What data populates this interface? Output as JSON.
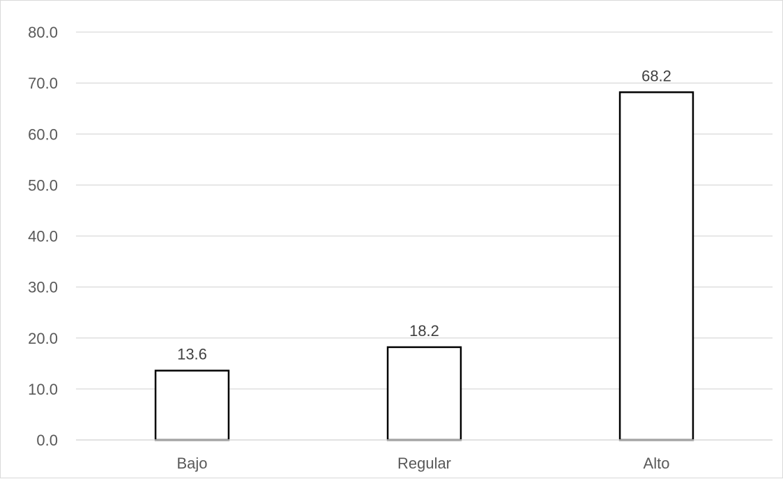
{
  "chart_data": {
    "type": "bar",
    "categories": [
      "Bajo",
      "Regular",
      "Alto"
    ],
    "values": [
      13.6,
      18.2,
      68.2
    ],
    "data_labels": [
      "13.6",
      "18.2",
      "68.2"
    ],
    "y_ticks": [
      "0.0",
      "10.0",
      "20.0",
      "30.0",
      "40.0",
      "50.0",
      "60.0",
      "70.0",
      "80.0"
    ],
    "ylim": [
      0,
      80
    ],
    "y_step": 10,
    "title": "",
    "xlabel": "",
    "ylabel": "",
    "grid": true,
    "legend": "none",
    "colors": {
      "bar_fill": "#ffffff",
      "bar_stroke": "#000000",
      "gridline": "#d9d9d9",
      "axis_text": "#595959",
      "data_label_text": "#404040"
    }
  }
}
